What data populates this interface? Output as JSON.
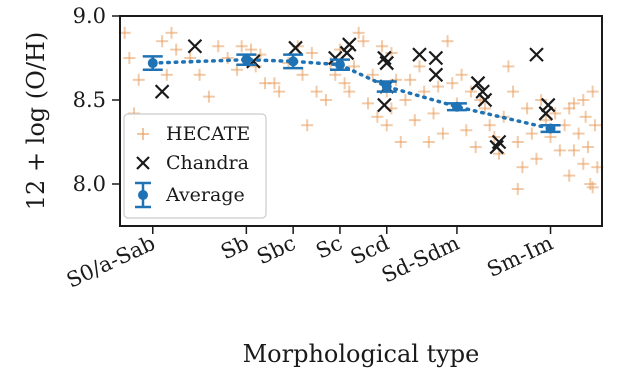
{
  "chart_data": {
    "type": "scatter",
    "xlabel": "Morphological type",
    "ylabel": "12 + log (O/H)",
    "ylim": [
      7.75,
      9.0
    ],
    "yticks": [
      8.0,
      8.5,
      9.0
    ],
    "ytick_labels": [
      "8.0",
      "8.5",
      "9.0"
    ],
    "xlim": [
      -0.7,
      9.6
    ],
    "categories": [
      {
        "label": "S0/a-Sab",
        "x": 0
      },
      {
        "label": "Sb",
        "x": 2
      },
      {
        "label": "Sbc",
        "x": 3
      },
      {
        "label": "Sc",
        "x": 4
      },
      {
        "label": "Scd",
        "x": 5
      },
      {
        "label": "Sd-Sdm",
        "x": 6.5
      },
      {
        "label": "Sm-Im",
        "x": 8.5
      }
    ],
    "legend": {
      "position": "lower-left",
      "entries": [
        "HECATE",
        "Chandra",
        "Average"
      ]
    },
    "colors": {
      "hecate": "#e8a060",
      "chandra": "#1a1a1a",
      "average": "#1f72b4"
    },
    "series": [
      {
        "name": "HECATE",
        "marker": "plus",
        "points": [
          [
            -0.6,
            8.9
          ],
          [
            -0.5,
            8.75
          ],
          [
            -0.3,
            8.62
          ],
          [
            -0.4,
            8.42
          ],
          [
            0.2,
            8.85
          ],
          [
            0.3,
            8.65
          ],
          [
            0.4,
            8.9
          ],
          [
            0.5,
            8.8
          ],
          [
            0.8,
            8.75
          ],
          [
            1.0,
            8.65
          ],
          [
            1.2,
            8.52
          ],
          [
            1.4,
            8.82
          ],
          [
            1.6,
            8.75
          ],
          [
            1.8,
            8.68
          ],
          [
            1.9,
            8.82
          ],
          [
            2.1,
            8.8
          ],
          [
            2.2,
            8.7
          ],
          [
            2.4,
            8.6
          ],
          [
            2.3,
            8.77
          ],
          [
            2.6,
            8.6
          ],
          [
            2.7,
            8.55
          ],
          [
            2.9,
            8.72
          ],
          [
            3.1,
            8.82
          ],
          [
            3.2,
            8.65
          ],
          [
            3.3,
            8.35
          ],
          [
            3.4,
            8.78
          ],
          [
            3.5,
            8.55
          ],
          [
            3.7,
            8.5
          ],
          [
            3.8,
            8.72
          ],
          [
            3.9,
            8.65
          ],
          [
            4.0,
            8.8
          ],
          [
            4.1,
            8.6
          ],
          [
            4.2,
            8.55
          ],
          [
            4.3,
            8.7
          ],
          [
            4.4,
            8.9
          ],
          [
            4.5,
            8.85
          ],
          [
            4.6,
            8.48
          ],
          [
            4.7,
            8.65
          ],
          [
            4.8,
            8.4
          ],
          [
            4.9,
            8.82
          ],
          [
            5.0,
            8.55
          ],
          [
            5.0,
            8.35
          ],
          [
            5.1,
            8.78
          ],
          [
            5.1,
            8.45
          ],
          [
            5.2,
            8.62
          ],
          [
            5.3,
            8.25
          ],
          [
            5.4,
            8.5
          ],
          [
            5.5,
            8.62
          ],
          [
            5.6,
            8.38
          ],
          [
            5.7,
            8.7
          ],
          [
            5.8,
            8.55
          ],
          [
            5.9,
            8.25
          ],
          [
            6.0,
            8.42
          ],
          [
            6.1,
            8.58
          ],
          [
            6.2,
            8.3
          ],
          [
            6.3,
            8.85
          ],
          [
            6.4,
            8.6
          ],
          [
            6.5,
            8.48
          ],
          [
            6.6,
            8.65
          ],
          [
            6.7,
            8.32
          ],
          [
            6.8,
            8.55
          ],
          [
            6.9,
            8.22
          ],
          [
            7.0,
            8.5
          ],
          [
            7.1,
            8.45
          ],
          [
            7.2,
            8.35
          ],
          [
            7.3,
            8.28
          ],
          [
            7.4,
            8.18
          ],
          [
            7.5,
            8.4
          ],
          [
            7.6,
            8.7
          ],
          [
            7.7,
            8.55
          ],
          [
            7.8,
            8.25
          ],
          [
            7.9,
            8.1
          ],
          [
            8.0,
            8.45
          ],
          [
            8.1,
            8.3
          ],
          [
            8.2,
            8.15
          ],
          [
            8.3,
            8.5
          ],
          [
            8.4,
            8.38
          ],
          [
            8.5,
            8.28
          ],
          [
            8.6,
            8.42
          ],
          [
            8.7,
            8.2
          ],
          [
            8.8,
            8.35
          ],
          [
            8.9,
            8.05
          ],
          [
            9.0,
            8.48
          ],
          [
            9.1,
            8.3
          ],
          [
            9.2,
            8.12
          ],
          [
            9.25,
            8.4
          ],
          [
            9.3,
            8.22
          ],
          [
            9.35,
            8.0
          ],
          [
            9.4,
            8.55
          ],
          [
            9.45,
            8.35
          ],
          [
            9.5,
            8.1
          ],
          [
            9.2,
            8.5
          ],
          [
            9.0,
            8.2
          ],
          [
            8.9,
            8.45
          ],
          [
            9.4,
            7.98
          ],
          [
            7.8,
            7.97
          ]
        ]
      },
      {
        "name": "Chandra",
        "marker": "x",
        "points": [
          [
            0.2,
            8.55
          ],
          [
            0.9,
            8.82
          ],
          [
            2.15,
            8.73
          ],
          [
            3.05,
            8.81
          ],
          [
            3.9,
            8.75
          ],
          [
            4.15,
            8.78
          ],
          [
            4.2,
            8.83
          ],
          [
            4.95,
            8.75
          ],
          [
            5.0,
            8.72
          ],
          [
            4.95,
            8.47
          ],
          [
            5.0,
            8.58
          ],
          [
            5.7,
            8.77
          ],
          [
            6.05,
            8.65
          ],
          [
            6.05,
            8.75
          ],
          [
            6.95,
            8.6
          ],
          [
            7.05,
            8.55
          ],
          [
            7.1,
            8.5
          ],
          [
            7.35,
            8.22
          ],
          [
            7.4,
            8.25
          ],
          [
            8.2,
            8.77
          ],
          [
            8.45,
            8.47
          ],
          [
            8.4,
            8.42
          ]
        ]
      },
      {
        "name": "Average",
        "marker": "errorbar",
        "points": [
          {
            "x": 0,
            "y": 8.72,
            "err": 0.04
          },
          {
            "x": 2,
            "y": 8.74,
            "err": 0.03
          },
          {
            "x": 3,
            "y": 8.73,
            "err": 0.04
          },
          {
            "x": 4,
            "y": 8.71,
            "err": 0.03
          },
          {
            "x": 5,
            "y": 8.58,
            "err": 0.03
          },
          {
            "x": 6.5,
            "y": 8.46,
            "err": 0.02
          },
          {
            "x": 8.5,
            "y": 8.33,
            "err": 0.02
          }
        ]
      }
    ]
  }
}
